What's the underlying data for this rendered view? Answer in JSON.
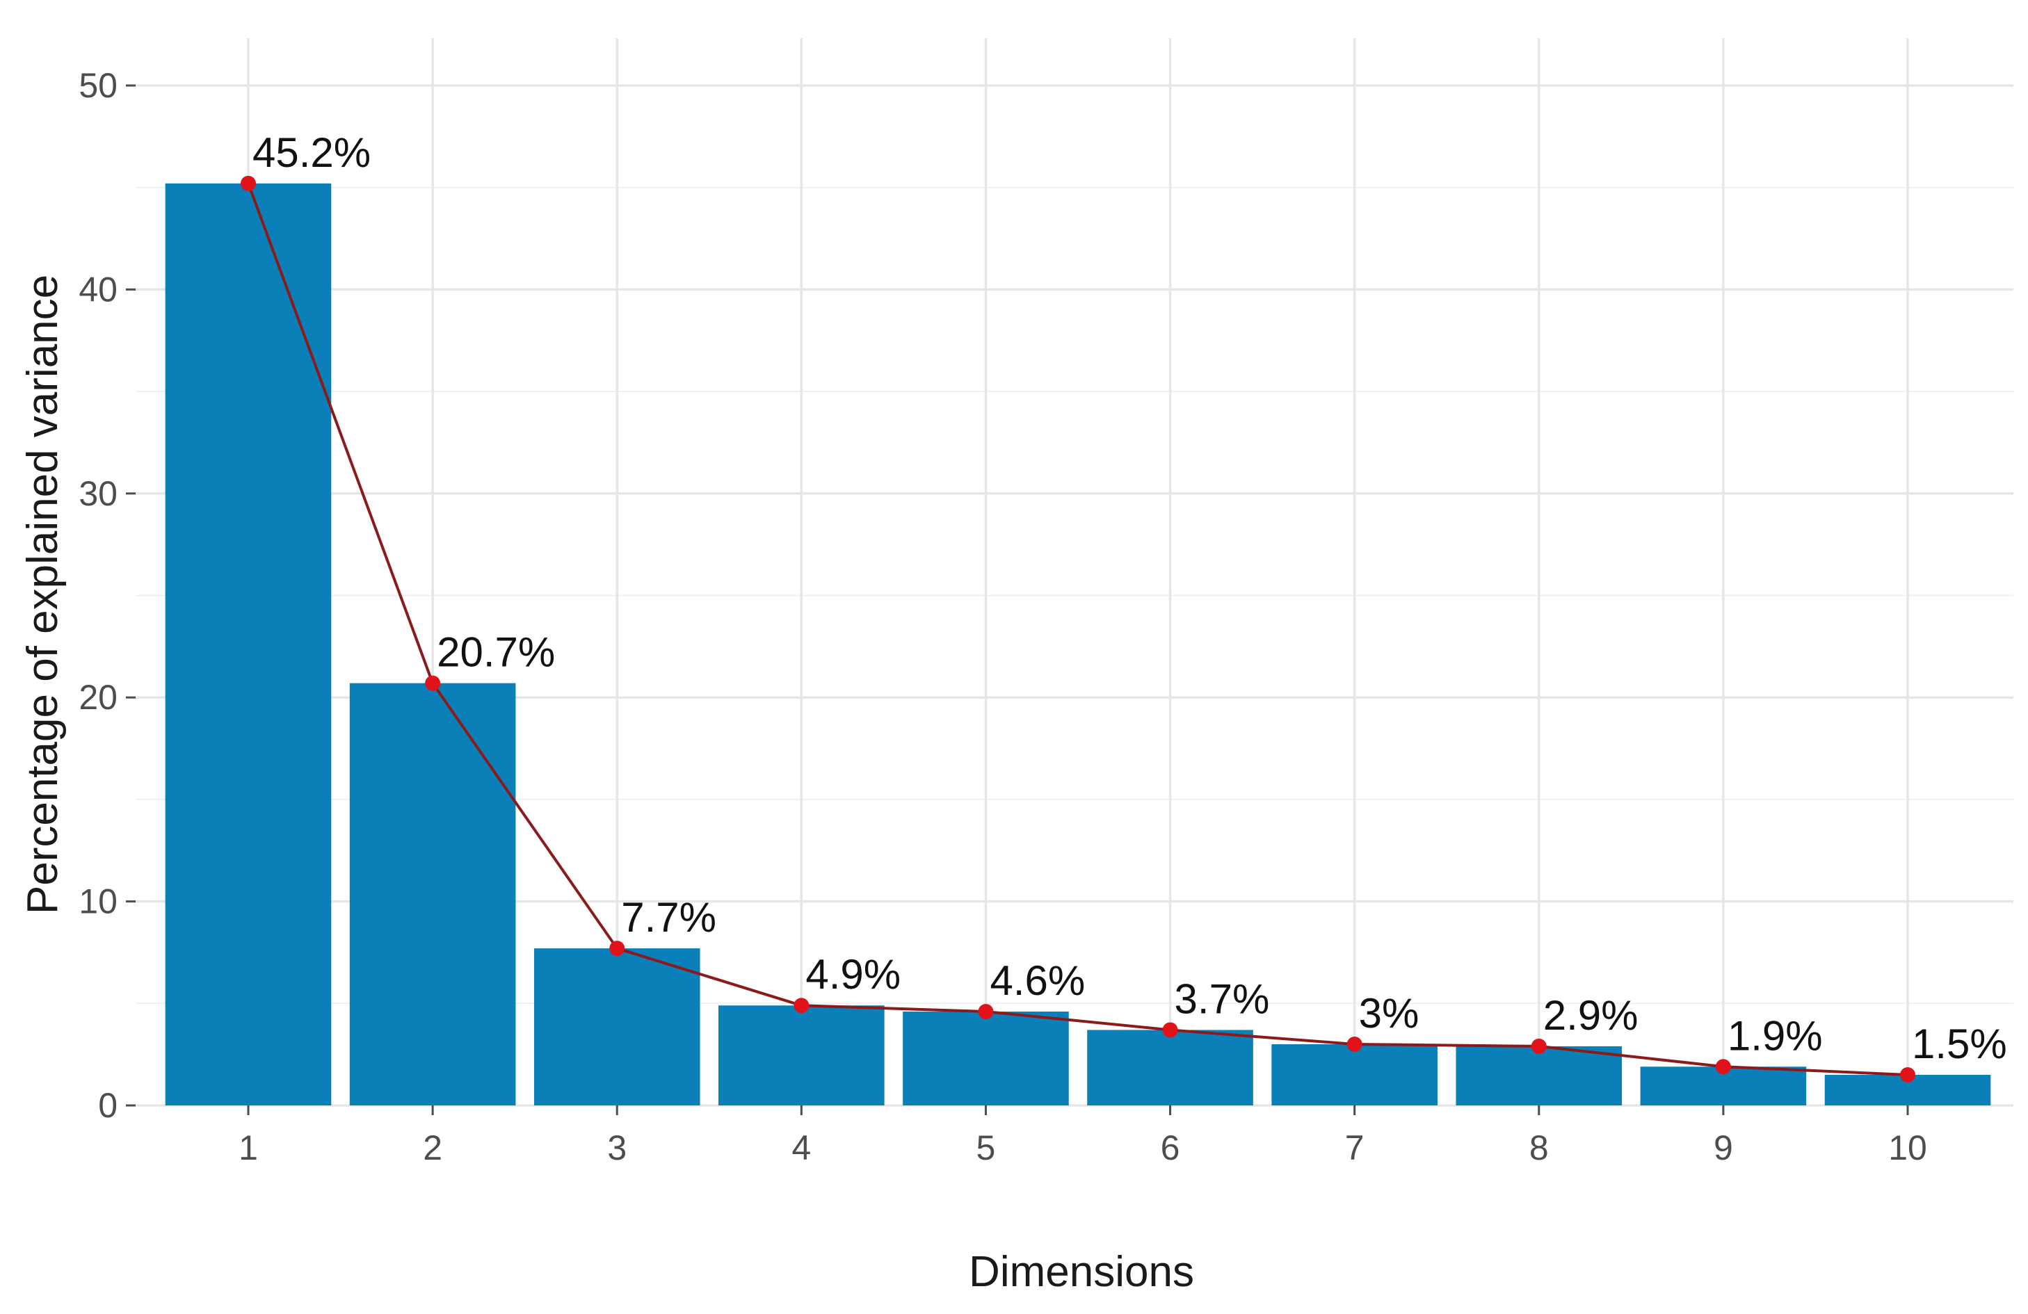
{
  "chart_data": {
    "type": "bar",
    "title": "",
    "xlabel": "Dimensions",
    "ylabel": "Percentage of explained variance",
    "categories": [
      "1",
      "2",
      "3",
      "4",
      "5",
      "6",
      "7",
      "8",
      "9",
      "10"
    ],
    "values": [
      45.2,
      20.7,
      7.7,
      4.9,
      4.6,
      3.7,
      3.0,
      2.9,
      1.9,
      1.5
    ],
    "value_labels": [
      "45.2%",
      "20.7%",
      "7.7%",
      "4.9%",
      "4.6%",
      "3.7%",
      "3%",
      "2.9%",
      "1.9%",
      "1.5%"
    ],
    "ylim": [
      0,
      50
    ],
    "yticks": [
      0,
      10,
      20,
      30,
      40,
      50
    ],
    "grid": true,
    "overlay_line": true,
    "bar_color": "#0a7fb8",
    "line_color": "#8b1a1a",
    "point_color": "#e0131a"
  }
}
